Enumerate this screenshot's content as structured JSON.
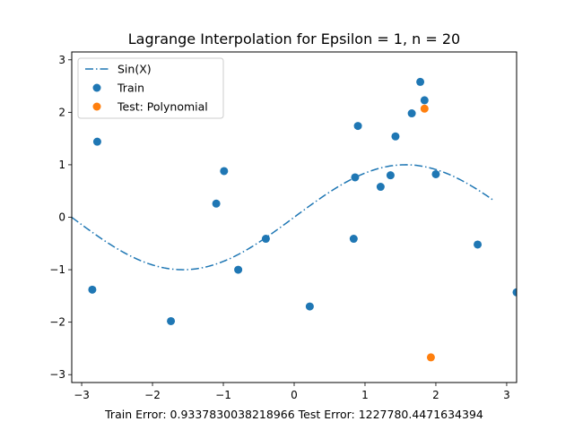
{
  "chart_data": {
    "type": "scatter",
    "title": "Lagrange Interpolation for Epsilon = 1, n = 20",
    "xlabel": "Train Error: 0.9337830038218966   Test Error: 1227780.4471634394",
    "ylabel": "",
    "xlim": [
      -3.14,
      3.14
    ],
    "ylim": [
      -3.15,
      3.15
    ],
    "xticks": [
      -3,
      -2,
      -1,
      0,
      1,
      2,
      3
    ],
    "yticks": [
      -3,
      -2,
      -1,
      0,
      1,
      2,
      3
    ],
    "legend_position": "upper-left",
    "series": [
      {
        "name": "Sin(X)",
        "kind": "line",
        "style": "dashdot",
        "color": "#1f77b4",
        "x_range": [
          -3.14,
          2.8
        ],
        "function": "sin"
      },
      {
        "name": "Train",
        "kind": "scatter",
        "color": "#1f77b4",
        "points": [
          [
            -2.85,
            -1.38
          ],
          [
            -2.78,
            1.44
          ],
          [
            -1.74,
            -1.98
          ],
          [
            -1.1,
            0.26
          ],
          [
            -0.99,
            0.88
          ],
          [
            -0.79,
            -1.0
          ],
          [
            -0.4,
            -0.41
          ],
          [
            0.22,
            -1.7
          ],
          [
            0.84,
            -0.41
          ],
          [
            0.86,
            0.76
          ],
          [
            0.9,
            1.74
          ],
          [
            1.22,
            0.58
          ],
          [
            1.36,
            0.8
          ],
          [
            1.43,
            1.54
          ],
          [
            1.66,
            1.98
          ],
          [
            1.78,
            2.58
          ],
          [
            1.84,
            2.23
          ],
          [
            2.0,
            0.82
          ],
          [
            2.59,
            -0.52
          ],
          [
            3.14,
            -1.43
          ]
        ]
      },
      {
        "name": "Test: Polynomial",
        "kind": "scatter",
        "color": "#ff7f0e",
        "points": [
          [
            1.84,
            2.07
          ],
          [
            1.93,
            -2.67
          ]
        ]
      }
    ]
  }
}
